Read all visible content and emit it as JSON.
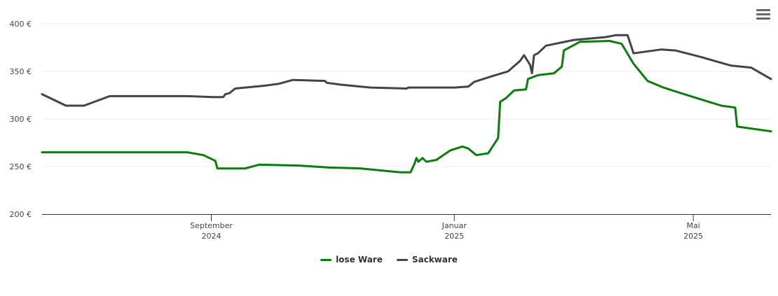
{
  "chart_data": {
    "type": "line",
    "title": "",
    "ylim": [
      200,
      400
    ],
    "yticks": [
      200,
      250,
      300,
      350,
      400
    ],
    "ytick_labels": [
      "200 €",
      "250 €",
      "300 €",
      "350 €",
      "400 €"
    ],
    "grid": true,
    "xlim": [
      "2024-06-08",
      "2025-06-09"
    ],
    "xticks": [
      {
        "date": "2024-09-01",
        "line1": "September",
        "line2": "2024"
      },
      {
        "date": "2025-01-01",
        "line1": "Januar",
        "line2": "2025"
      },
      {
        "date": "2025-05-01",
        "line1": "Mai",
        "line2": "2025"
      }
    ],
    "legend_position": "bottom-center",
    "series": [
      {
        "name": "lose Ware",
        "color": "#0a7d0a",
        "points": [
          [
            "2024-06-08",
            265
          ],
          [
            "2024-08-20",
            265
          ],
          [
            "2024-08-28",
            262
          ],
          [
            "2024-09-03",
            256
          ],
          [
            "2024-09-04",
            248
          ],
          [
            "2024-09-18",
            248
          ],
          [
            "2024-09-25",
            252
          ],
          [
            "2024-10-15",
            251
          ],
          [
            "2024-10-30",
            249
          ],
          [
            "2024-11-15",
            248
          ],
          [
            "2024-12-05",
            244
          ],
          [
            "2024-12-10",
            244
          ],
          [
            "2024-12-12",
            253
          ],
          [
            "2024-12-13",
            259
          ],
          [
            "2024-12-14",
            255
          ],
          [
            "2024-12-16",
            259
          ],
          [
            "2024-12-18",
            255
          ],
          [
            "2024-12-23",
            257
          ],
          [
            "2024-12-30",
            267
          ],
          [
            "2025-01-05",
            271
          ],
          [
            "2025-01-08",
            269
          ],
          [
            "2025-01-12",
            262
          ],
          [
            "2025-01-18",
            264
          ],
          [
            "2025-01-23",
            280
          ],
          [
            "2025-01-24",
            318
          ],
          [
            "2025-01-27",
            322
          ],
          [
            "2025-01-31",
            330
          ],
          [
            "2025-02-06",
            331
          ],
          [
            "2025-02-07",
            342
          ],
          [
            "2025-02-12",
            346
          ],
          [
            "2025-02-20",
            348
          ],
          [
            "2025-02-24",
            355
          ],
          [
            "2025-02-25",
            372
          ],
          [
            "2025-03-05",
            381
          ],
          [
            "2025-03-20",
            382
          ],
          [
            "2025-03-26",
            379
          ],
          [
            "2025-04-01",
            358
          ],
          [
            "2025-04-08",
            340
          ],
          [
            "2025-04-16",
            333
          ],
          [
            "2025-04-25",
            327
          ],
          [
            "2025-05-15",
            314
          ],
          [
            "2025-05-22",
            312
          ],
          [
            "2025-05-23",
            292
          ],
          [
            "2025-06-09",
            287
          ]
        ]
      },
      {
        "name": "Sackware",
        "color": "#434348",
        "points": [
          [
            "2024-06-08",
            326
          ],
          [
            "2024-06-20",
            314
          ],
          [
            "2024-06-29",
            314
          ],
          [
            "2024-07-12",
            324
          ],
          [
            "2024-08-20",
            324
          ],
          [
            "2024-09-02",
            323
          ],
          [
            "2024-09-07",
            323
          ],
          [
            "2024-09-08",
            326
          ],
          [
            "2024-09-10",
            327
          ],
          [
            "2024-09-13",
            332
          ],
          [
            "2024-09-28",
            335
          ],
          [
            "2024-10-05",
            337
          ],
          [
            "2024-10-12",
            341
          ],
          [
            "2024-10-28",
            340
          ],
          [
            "2024-10-29",
            338
          ],
          [
            "2024-11-05",
            336
          ],
          [
            "2024-11-20",
            333
          ],
          [
            "2024-12-08",
            332
          ],
          [
            "2024-12-09",
            333
          ],
          [
            "2025-01-01",
            333
          ],
          [
            "2025-01-08",
            334
          ],
          [
            "2025-01-11",
            339
          ],
          [
            "2025-01-20",
            345
          ],
          [
            "2025-01-28",
            350
          ],
          [
            "2025-02-03",
            361
          ],
          [
            "2025-02-05",
            367
          ],
          [
            "2025-02-08",
            357
          ],
          [
            "2025-02-09",
            348
          ],
          [
            "2025-02-10",
            367
          ],
          [
            "2025-02-12",
            369
          ],
          [
            "2025-02-16",
            377
          ],
          [
            "2025-03-02",
            383
          ],
          [
            "2025-03-18",
            386
          ],
          [
            "2025-03-23",
            388
          ],
          [
            "2025-03-29",
            388
          ],
          [
            "2025-04-01",
            369
          ],
          [
            "2025-04-15",
            373
          ],
          [
            "2025-04-22",
            372
          ],
          [
            "2025-05-05",
            365
          ],
          [
            "2025-05-20",
            356
          ],
          [
            "2025-05-30",
            354
          ],
          [
            "2025-06-09",
            342
          ]
        ]
      }
    ]
  },
  "menu": {
    "icon": "hamburger-menu-icon"
  }
}
